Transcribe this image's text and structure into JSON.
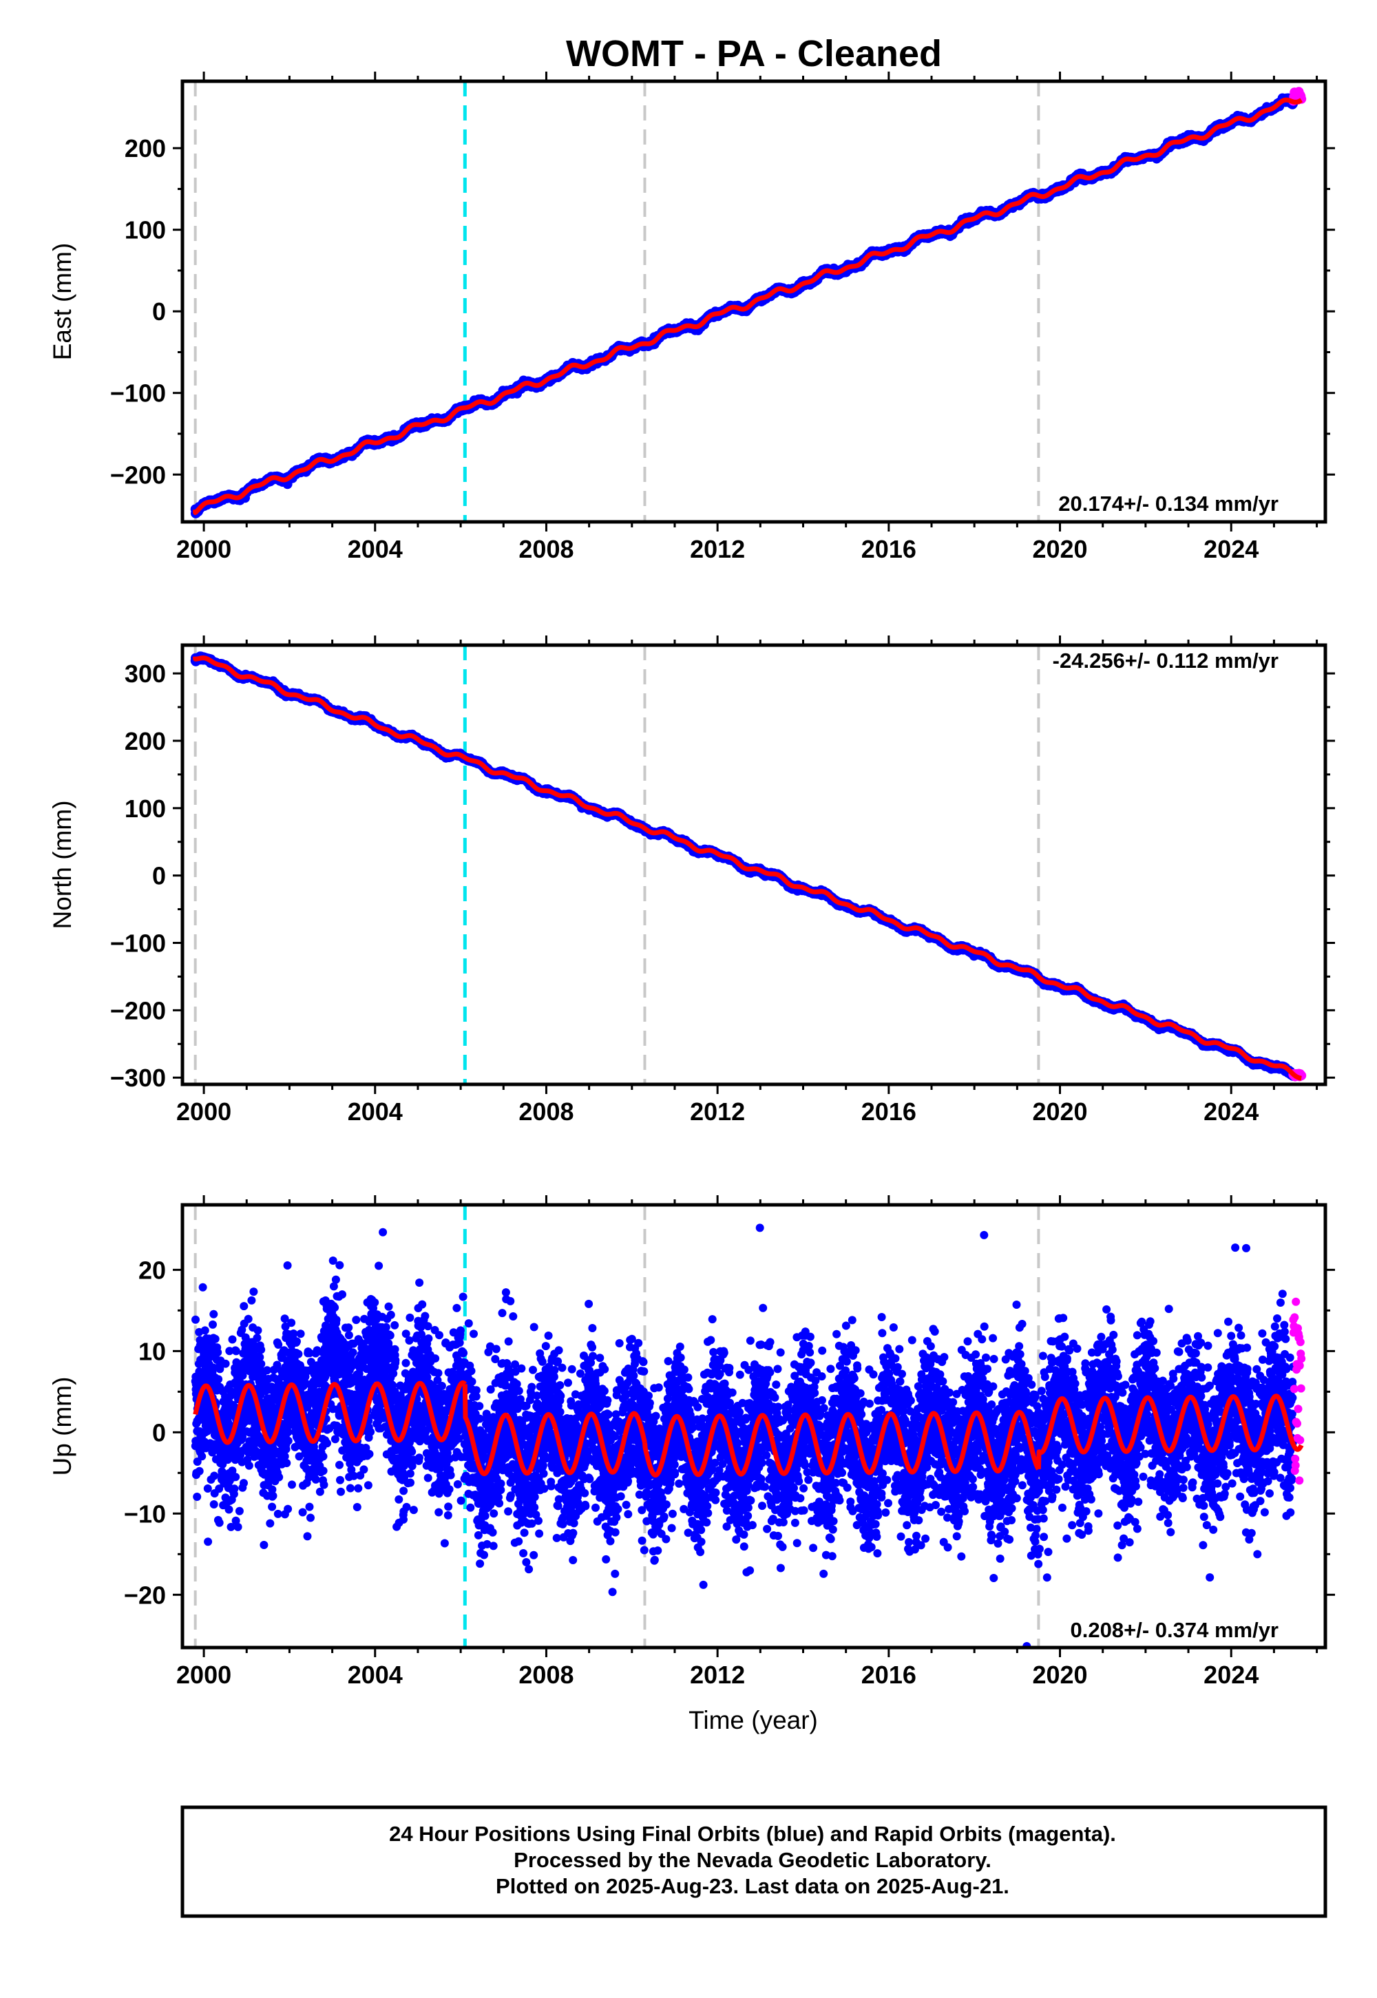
{
  "title": "WOMT  - PA - Cleaned",
  "colors": {
    "final_orbits": "#0000ff",
    "rapid_orbits": "#ff00ff",
    "model_fit": "#ff0000",
    "event_line": "#00e5ee",
    "marker_line": "#c8c8c8"
  },
  "chart_data": [
    {
      "type": "scatter",
      "ylabel": "East (mm)",
      "xlabel": "",
      "xlim": [
        1999.5,
        2026.2
      ],
      "ylim": [
        -258,
        282
      ],
      "x_ticks": [
        2000,
        2004,
        2008,
        2012,
        2016,
        2020,
        2024
      ],
      "y_ticks": [
        -200,
        -100,
        0,
        100,
        200
      ],
      "grid": false,
      "rate_label": "20.174+/- 0.134 mm/yr",
      "rate_position": "bottom-right",
      "vertical_markers": [
        {
          "x": 1999.8,
          "kind": "equipment"
        },
        {
          "x": 2006.1,
          "kind": "event"
        },
        {
          "x": 2010.3,
          "kind": "equipment"
        },
        {
          "x": 2019.5,
          "kind": "equipment"
        }
      ],
      "series": [
        {
          "name": "Final Orbits",
          "kind": "daily positions",
          "x_range": [
            1999.8,
            2025.45
          ],
          "trend": [
            [
              1999.8,
              -243
            ],
            [
              2025.45,
              258
            ]
          ],
          "scatter_mm": 3.5
        },
        {
          "name": "Rapid Orbits",
          "kind": "daily positions",
          "x_range": [
            2025.45,
            2025.64
          ],
          "approx_y_range": [
            257,
            270
          ]
        },
        {
          "name": "Model",
          "kind": "fit",
          "x": [
            1999.8,
            2025.64
          ],
          "y": [
            -243,
            262
          ]
        }
      ]
    },
    {
      "type": "scatter",
      "ylabel": "North (mm)",
      "xlabel": "",
      "xlim": [
        1999.5,
        2026.2
      ],
      "ylim": [
        -310,
        342
      ],
      "x_ticks": [
        2000,
        2004,
        2008,
        2012,
        2016,
        2020,
        2024
      ],
      "y_ticks": [
        -300,
        -200,
        -100,
        0,
        100,
        200,
        300
      ],
      "grid": false,
      "rate_label": "-24.256+/- 0.112 mm/yr",
      "rate_position": "top-right",
      "vertical_markers": [
        {
          "x": 1999.8,
          "kind": "equipment"
        },
        {
          "x": 2006.1,
          "kind": "event"
        },
        {
          "x": 2010.3,
          "kind": "equipment"
        },
        {
          "x": 2019.5,
          "kind": "equipment"
        }
      ],
      "series": [
        {
          "name": "Final Orbits",
          "kind": "daily positions",
          "x_range": [
            1999.8,
            2025.45
          ],
          "trend": [
            [
              1999.8,
              325
            ],
            [
              2025.45,
              -296
            ]
          ],
          "scatter_mm": 3
        },
        {
          "name": "Rapid Orbits",
          "kind": "daily positions",
          "x_range": [
            2025.45,
            2025.64
          ],
          "approx_y_range": [
            -299,
            -294
          ]
        },
        {
          "name": "Model",
          "kind": "fit",
          "x": [
            1999.8,
            2025.64
          ],
          "y": [
            325,
            -298
          ]
        }
      ]
    },
    {
      "type": "scatter",
      "ylabel": "Up (mm)",
      "xlabel": "Time (year)",
      "xlim": [
        1999.5,
        2026.2
      ],
      "ylim": [
        -26.5,
        28
      ],
      "x_ticks": [
        2000,
        2004,
        2008,
        2012,
        2016,
        2020,
        2024
      ],
      "y_ticks": [
        -20,
        -10,
        0,
        10,
        20
      ],
      "grid": false,
      "rate_label": "0.208+/- 0.374 mm/yr",
      "rate_position": "bottom-right",
      "vertical_markers": [
        {
          "x": 1999.8,
          "kind": "equipment"
        },
        {
          "x": 2006.1,
          "kind": "event"
        },
        {
          "x": 2010.3,
          "kind": "equipment"
        },
        {
          "x": 2019.5,
          "kind": "equipment"
        }
      ],
      "series": [
        {
          "name": "Final Orbits",
          "kind": "daily positions",
          "x_range": [
            1999.8,
            2025.45
          ],
          "approx_y_range": [
            -25,
            27
          ],
          "scatter_mm": 4.5
        },
        {
          "name": "Rapid Orbits",
          "kind": "daily positions",
          "x_range": [
            2025.45,
            2025.64
          ],
          "approx_y_range": [
            -6,
            17
          ]
        },
        {
          "name": "Model",
          "kind": "fit",
          "segments": [
            {
              "x_range": [
                1999.8,
                2006.1
              ],
              "mean": 2.4,
              "annual_amplitude": 3.5,
              "trend_per_yr": 0.21
            },
            {
              "x_range": [
                2006.1,
                2010.3
              ],
              "mean": -1.4,
              "annual_amplitude": 3.6,
              "trend_per_yr": 0.21
            },
            {
              "x_range": [
                2010.3,
                2019.5
              ],
              "mean": -1.4,
              "annual_amplitude": 3.6,
              "trend_per_yr": 0.21
            },
            {
              "x_range": [
                2019.5,
                2025.64
              ],
              "mean": 1.0,
              "annual_amplitude": 3.3,
              "trend_per_yr": 0.21
            }
          ]
        }
      ]
    }
  ],
  "footer": {
    "line1": "24 Hour Positions Using Final Orbits (blue) and Rapid Orbits (magenta).",
    "line2": "Processed by the Nevada Geodetic Laboratory.",
    "line3": "Plotted on 2025-Aug-23. Last data on 2025-Aug-21."
  }
}
